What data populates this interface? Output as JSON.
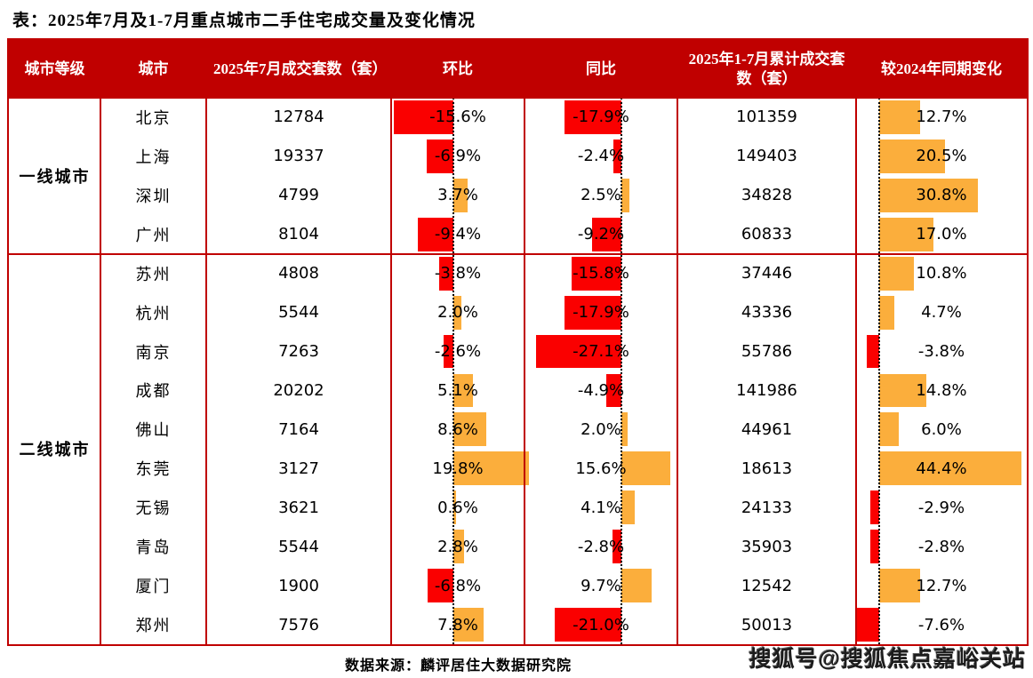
{
  "title": "表：2025年7月及1-7月重点城市二手住宅成交量及变化情况",
  "footer": {
    "source": "数据来源：麟评居住大数据研究院",
    "watermark": "搜狐号@搜狐焦点嘉峪关站"
  },
  "colors": {
    "header_bg": "#c00000",
    "border": "#c00000",
    "bar_negative": "#fa0000",
    "bar_positive": "#fbae3c",
    "header_text": "#ffffff",
    "body_text": "#000000"
  },
  "chart_data": {
    "type": "table",
    "title": "表：2025年7月及1-7月重点城市二手住宅成交量及变化情况",
    "note": "环比/同比/较2024年同期变化 columns contain in-cell data bars: red = negative, orange = positive, dotted vertical line = zero baseline",
    "columns": [
      "城市等级",
      "城市",
      "2025年7月成交套数（套）",
      "环比",
      "同比",
      "2025年1-7月累计成交套数（套）",
      "较2024年同期变化"
    ],
    "groups": [
      {
        "tier": "一线城市",
        "rows": [
          {
            "city": "北京",
            "jul_units": "12784",
            "mom_pct": -15.6,
            "yoy_pct": -17.9,
            "cum_units": "101359",
            "vs2024_pct": 12.7
          },
          {
            "city": "上海",
            "jul_units": "19337",
            "mom_pct": -6.9,
            "yoy_pct": -2.4,
            "cum_units": "149403",
            "vs2024_pct": 20.5
          },
          {
            "city": "深圳",
            "jul_units": "4799",
            "mom_pct": 3.7,
            "yoy_pct": 2.5,
            "cum_units": "34828",
            "vs2024_pct": 30.8
          },
          {
            "city": "广州",
            "jul_units": "8104",
            "mom_pct": -9.4,
            "yoy_pct": -9.2,
            "cum_units": "60833",
            "vs2024_pct": 17.0
          }
        ]
      },
      {
        "tier": "二线城市",
        "rows": [
          {
            "city": "苏州",
            "jul_units": "4808",
            "mom_pct": -3.8,
            "yoy_pct": -15.8,
            "cum_units": "37446",
            "vs2024_pct": 10.8
          },
          {
            "city": "杭州",
            "jul_units": "5544",
            "mom_pct": 2.0,
            "yoy_pct": -17.9,
            "cum_units": "43336",
            "vs2024_pct": 4.7
          },
          {
            "city": "南京",
            "jul_units": "7263",
            "mom_pct": -2.6,
            "yoy_pct": -27.1,
            "cum_units": "55786",
            "vs2024_pct": -3.8
          },
          {
            "city": "成都",
            "jul_units": "20202",
            "mom_pct": 5.1,
            "yoy_pct": -4.9,
            "cum_units": "141986",
            "vs2024_pct": 14.8
          },
          {
            "city": "佛山",
            "jul_units": "7164",
            "mom_pct": 8.6,
            "yoy_pct": 2.0,
            "cum_units": "44961",
            "vs2024_pct": 6.0
          },
          {
            "city": "东莞",
            "jul_units": "3127",
            "mom_pct": 19.8,
            "yoy_pct": 15.6,
            "cum_units": "18613",
            "vs2024_pct": 44.4
          },
          {
            "city": "无锡",
            "jul_units": "3621",
            "mom_pct": 0.6,
            "yoy_pct": 4.1,
            "cum_units": "24133",
            "vs2024_pct": -2.9
          },
          {
            "city": "青岛",
            "jul_units": "5544",
            "mom_pct": 2.8,
            "yoy_pct": -2.8,
            "cum_units": "35903",
            "vs2024_pct": -2.8
          },
          {
            "city": "厦门",
            "jul_units": "1900",
            "mom_pct": -6.8,
            "yoy_pct": 9.7,
            "cum_units": "12542",
            "vs2024_pct": 12.7
          },
          {
            "city": "郑州",
            "jul_units": "7576",
            "mom_pct": 7.8,
            "yoy_pct": -21.0,
            "cum_units": "50013",
            "vs2024_pct": -7.6
          }
        ]
      }
    ]
  }
}
